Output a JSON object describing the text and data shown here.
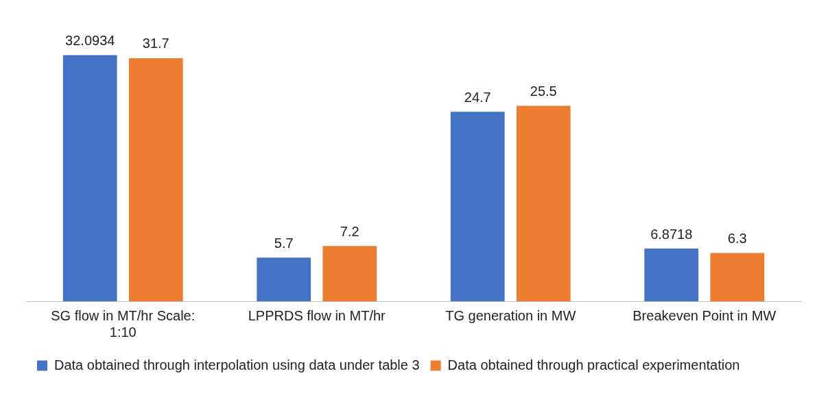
{
  "chart_data": {
    "type": "bar",
    "categories": [
      "SG flow in MT/hr Scale: 1:10",
      "LPPRDS flow in MT/hr",
      "TG generation in MW",
      "Breakeven Point in MW"
    ],
    "series": [
      {
        "name": "Data obtained through interpolation using data under table 3",
        "color": "#4472c4",
        "values": [
          32.0934,
          5.7,
          24.7,
          6.8718
        ]
      },
      {
        "name": "Data obtained through practical experimentation",
        "color": "#ed7d31",
        "values": [
          31.7,
          7.2,
          25.5,
          6.3
        ]
      }
    ],
    "data_labels": true,
    "grid": false,
    "legend": "bottom"
  }
}
